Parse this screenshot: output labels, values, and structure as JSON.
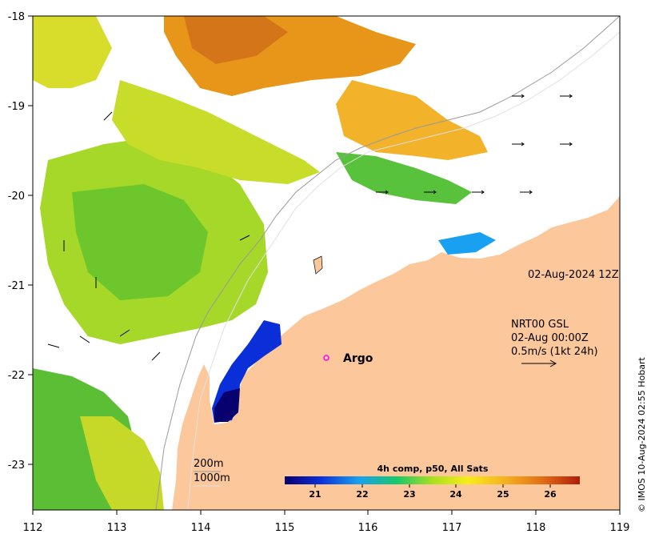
{
  "map": {
    "x_ticks": [
      "112",
      "113",
      "114",
      "115",
      "116",
      "117",
      "118",
      "119"
    ],
    "y_ticks": [
      "-18",
      "-19",
      "-20",
      "-21",
      "-22",
      "-23"
    ],
    "timestamp": "02-Aug-2024 12Z",
    "current_source": "NRT00 GSL",
    "current_time": "02-Aug 00:00Z",
    "current_scale": "0.5m/s (1kt 24h)",
    "contour_200": "200m",
    "contour_1000": "1000m",
    "argo_label": "Argo",
    "colorbar_title": "4h comp, p50, All Sats",
    "colorbar_ticks": [
      "21",
      "22",
      "23",
      "24",
      "25",
      "26"
    ],
    "credit": "© IMOS 10-Aug-2024 02:55 Hobart",
    "colors": {
      "land": "#fcc89b",
      "argo": "#ff00ff",
      "sst_cold": "#0a1a8a",
      "sst_warm": "#c0390b"
    }
  }
}
